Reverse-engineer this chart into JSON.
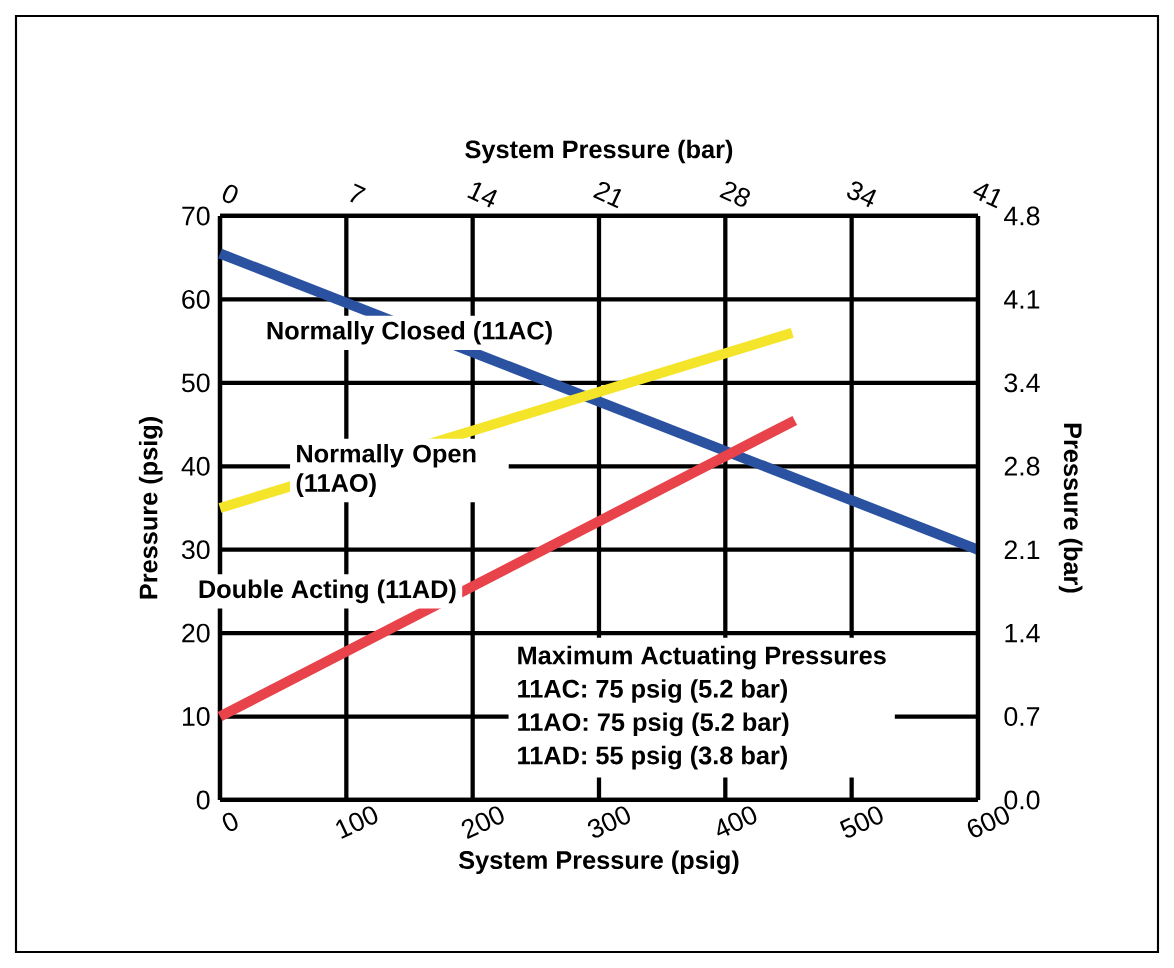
{
  "chart_data": {
    "type": "line",
    "xlabel": "System Pressure (psig)",
    "ylabel": "Pressure (psig)",
    "x2label": "System Pressure (bar)",
    "y2label": "Pressure (bar)",
    "xlim": [
      0,
      600
    ],
    "ylim": [
      0,
      70
    ],
    "xticks": [
      0,
      100,
      200,
      300,
      400,
      500,
      600
    ],
    "yticks": [
      0,
      10,
      20,
      30,
      40,
      50,
      60,
      70
    ],
    "x2lim": [
      0,
      41.4
    ],
    "x2ticks": [
      {
        "value": 0,
        "label": "0"
      },
      {
        "value": 6.9,
        "label": "7"
      },
      {
        "value": 13.8,
        "label": "14"
      },
      {
        "value": 20.7,
        "label": "21"
      },
      {
        "value": 27.6,
        "label": "28"
      },
      {
        "value": 34.5,
        "label": "34"
      },
      {
        "value": 41.4,
        "label": "41"
      }
    ],
    "y2lim": [
      0,
      4.83
    ],
    "y2ticks": [
      {
        "value": 0,
        "label": "0.0"
      },
      {
        "value": 0.69,
        "label": "0.7"
      },
      {
        "value": 1.38,
        "label": "1.4"
      },
      {
        "value": 2.07,
        "label": "2.1"
      },
      {
        "value": 2.76,
        "label": "2.8"
      },
      {
        "value": 3.45,
        "label": "3.4"
      },
      {
        "value": 4.14,
        "label": "4.1"
      },
      {
        "value": 4.83,
        "label": "4.8"
      }
    ],
    "grid": true,
    "marker": "none",
    "line_style": "solid",
    "series": [
      {
        "name": "Normally Closed (11AC)",
        "color": "#2a52a0",
        "x": [
          0,
          600
        ],
        "values": [
          65.5,
          30
        ]
      },
      {
        "name": "Normally Open (11AO)",
        "color": "#f5e52a",
        "x": [
          0,
          453
        ],
        "values": [
          35,
          56
        ]
      },
      {
        "name": "Double Acting (11AD)",
        "color": "#e8434a",
        "x": [
          0,
          455
        ],
        "values": [
          10,
          45.5
        ]
      }
    ],
    "annotations": [
      "Maximum Actuating Pressures",
      "11AC: 75 psig (5.2 bar)",
      "11AO: 75 psig (5.2 bar)",
      "11AD: 55 psig (3.8 bar)"
    ]
  }
}
